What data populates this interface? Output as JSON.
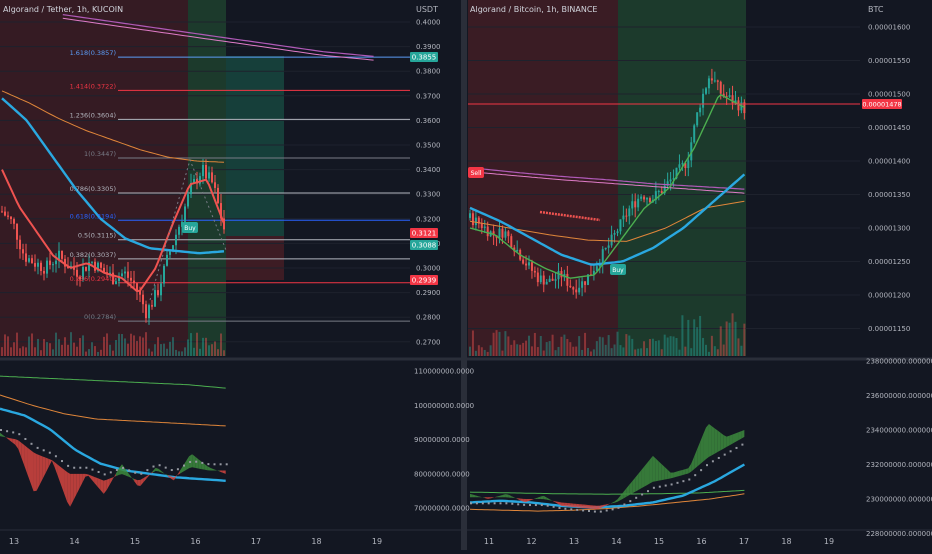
{
  "left_chart": {
    "title": "Algorand / Tether, 1h, KUCOIN",
    "unit": "USDT",
    "price_ticks": [
      "0.4000",
      "0.3900",
      "0.3800",
      "0.3700",
      "0.3600",
      "0.3500",
      "0.3400",
      "0.3300",
      "0.3200",
      "0.3100",
      "0.3000",
      "0.2900",
      "0.2800",
      "0.2700"
    ],
    "fib_levels": [
      {
        "label": "1.618(0.3857)",
        "price": 0.3857,
        "color": "#5b9cf6"
      },
      {
        "label": "1.414(0.3722)",
        "price": 0.3722,
        "color": "#f23645"
      },
      {
        "label": "1.236(0.3604)",
        "price": 0.3604,
        "color": "#b2b5be"
      },
      {
        "label": "1(0.3447)",
        "price": 0.3447,
        "color": "#787b86"
      },
      {
        "label": "0.786(0.3305)",
        "price": 0.3305,
        "color": "#b2b5be"
      },
      {
        "label": "0.618(0.3194)",
        "price": 0.3194,
        "color": "#2962ff"
      },
      {
        "label": "0.5(0.3115)",
        "price": 0.3115,
        "color": "#b2b5be"
      },
      {
        "label": "0.382(0.3037)",
        "price": 0.3037,
        "color": "#b2b5be"
      },
      {
        "label": "0.236(0.2940)",
        "price": 0.294,
        "color": "#f23645"
      },
      {
        "label": "0(0.2784)",
        "price": 0.2784,
        "color": "#787b86"
      }
    ],
    "price_badges": [
      {
        "text": "0.3855",
        "color": "#26a69a",
        "price": 0.3855
      },
      {
        "text": "0.3121",
        "color": "#f23645",
        "price": 0.3121
      },
      {
        "text": "0.3088",
        "color": "#26a69a",
        "price": 0.3088
      },
      {
        "text": "0.2939",
        "color": "#f23645",
        "price": 0.2939
      }
    ],
    "signal": {
      "text": "Buy"
    },
    "osc_ticks": [
      "110000000.0000",
      "100000000.0000",
      "90000000.0000",
      "80000000.0000",
      "70000000.0000"
    ],
    "time_labels": [
      "13",
      "14",
      "15",
      "16",
      "17",
      "18",
      "19"
    ]
  },
  "right_chart": {
    "title": "Algorand / Bitcoin, 1h, BINANCE",
    "unit": "BTC",
    "price_ticks": [
      "0.00001600",
      "0.00001550",
      "0.00001500",
      "0.00001450",
      "0.00001400",
      "0.00001350",
      "0.00001300",
      "0.00001250",
      "0.00001200",
      "0.00001150"
    ],
    "price_badge": {
      "text": "0.00001478",
      "color": "#f23645"
    },
    "signals": [
      {
        "text": "Sell"
      },
      {
        "text": "Buy"
      }
    ],
    "osc_ticks": [
      "238000000.00000000",
      "236000000.00000000",
      "234000000.00000000",
      "232000000.00000000",
      "230000000.00000000",
      "228000000.00000000"
    ],
    "time_labels": [
      "11",
      "12",
      "13",
      "14",
      "15",
      "16",
      "17",
      "18",
      "19"
    ]
  },
  "colors": {
    "background": "#131722",
    "grid": "#1e222d",
    "up": "#26a69a",
    "down": "#ef5350",
    "ema_blue": "#2aa8e0",
    "ema_orange": "#e0863a",
    "signal_red": "#f23645",
    "signal_green": "#26a69a"
  }
}
